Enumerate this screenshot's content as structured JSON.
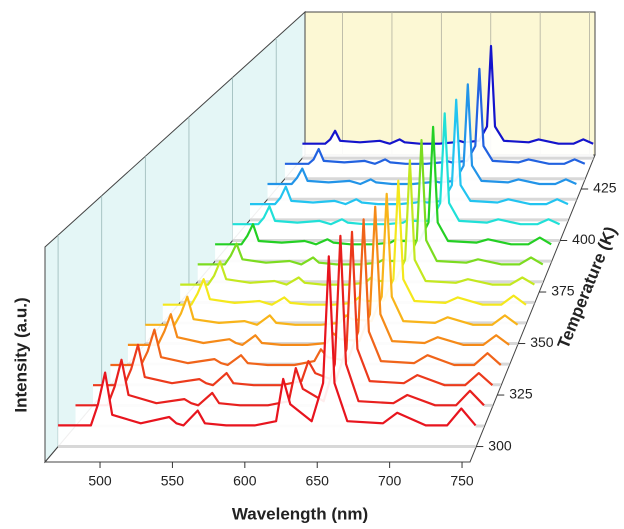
{
  "chart_data": {
    "type": "waterfall3d",
    "x_label": "Wavelength (nm)",
    "y_label": "Temperature (K)",
    "z_label": "Intensity (a.u.)",
    "xlim": [
      462,
      755.5
    ],
    "xticks": [
      500,
      550,
      600,
      650,
      700,
      750
    ],
    "ylim": [
      292.5,
      441.5
    ],
    "yticks": [
      300,
      325,
      350,
      375,
      400,
      425
    ],
    "zlim": [
      0,
      1
    ],
    "x": [
      462,
      485,
      490,
      495,
      500,
      520,
      540,
      545,
      550,
      560,
      565,
      580,
      600,
      615,
      620,
      625,
      640,
      648,
      652,
      656,
      665,
      690,
      700,
      720,
      735,
      745,
      755
    ],
    "series": [
      {
        "temperature": 300,
        "color": "#e8141e",
        "values": [
          0.1,
          0.1,
          0.2,
          0.35,
          0.15,
          0.11,
          0.14,
          0.11,
          0.1,
          0.17,
          0.11,
          0.1,
          0.1,
          0.12,
          0.32,
          0.2,
          0.12,
          0.3,
          0.9,
          0.3,
          0.12,
          0.11,
          0.16,
          0.1,
          0.1,
          0.18,
          0.1
        ]
      },
      {
        "temperature": 310,
        "color": "#e8201e",
        "values": [
          0.1,
          0.1,
          0.19,
          0.32,
          0.15,
          0.11,
          0.13,
          0.11,
          0.1,
          0.16,
          0.11,
          0.1,
          0.1,
          0.12,
          0.28,
          0.18,
          0.12,
          0.3,
          0.92,
          0.3,
          0.12,
          0.11,
          0.15,
          0.1,
          0.1,
          0.17,
          0.1
        ]
      },
      {
        "temperature": 320,
        "color": "#ec3a1c",
        "values": [
          0.1,
          0.1,
          0.18,
          0.3,
          0.14,
          0.11,
          0.13,
          0.11,
          0.1,
          0.16,
          0.11,
          0.1,
          0.1,
          0.12,
          0.22,
          0.16,
          0.12,
          0.28,
          0.86,
          0.28,
          0.12,
          0.11,
          0.15,
          0.1,
          0.1,
          0.16,
          0.1
        ]
      },
      {
        "temperature": 330,
        "color": "#f0641a",
        "values": [
          0.1,
          0.1,
          0.17,
          0.28,
          0.14,
          0.11,
          0.13,
          0.11,
          0.1,
          0.15,
          0.11,
          0.1,
          0.1,
          0.12,
          0.18,
          0.14,
          0.12,
          0.27,
          0.84,
          0.27,
          0.12,
          0.11,
          0.15,
          0.1,
          0.1,
          0.16,
          0.1
        ]
      },
      {
        "temperature": 340,
        "color": "#f58a18",
        "values": [
          0.1,
          0.1,
          0.17,
          0.26,
          0.14,
          0.11,
          0.13,
          0.11,
          0.1,
          0.15,
          0.11,
          0.1,
          0.1,
          0.11,
          0.16,
          0.13,
          0.12,
          0.26,
          0.82,
          0.26,
          0.12,
          0.11,
          0.14,
          0.1,
          0.1,
          0.15,
          0.1
        ]
      },
      {
        "temperature": 350,
        "color": "#f8b41a",
        "values": [
          0.1,
          0.1,
          0.16,
          0.25,
          0.13,
          0.11,
          0.12,
          0.11,
          0.1,
          0.15,
          0.11,
          0.1,
          0.1,
          0.11,
          0.15,
          0.13,
          0.12,
          0.25,
          0.8,
          0.25,
          0.12,
          0.11,
          0.14,
          0.1,
          0.1,
          0.15,
          0.1
        ]
      },
      {
        "temperature": 360,
        "color": "#f4e81c",
        "values": [
          0.1,
          0.1,
          0.16,
          0.24,
          0.13,
          0.11,
          0.12,
          0.11,
          0.1,
          0.14,
          0.11,
          0.1,
          0.1,
          0.11,
          0.14,
          0.12,
          0.12,
          0.24,
          0.78,
          0.24,
          0.12,
          0.11,
          0.14,
          0.1,
          0.1,
          0.15,
          0.1
        ]
      },
      {
        "temperature": 370,
        "color": "#c4e820",
        "values": [
          0.1,
          0.1,
          0.15,
          0.23,
          0.13,
          0.11,
          0.12,
          0.11,
          0.1,
          0.14,
          0.11,
          0.1,
          0.1,
          0.11,
          0.14,
          0.12,
          0.12,
          0.24,
          0.8,
          0.24,
          0.12,
          0.11,
          0.13,
          0.1,
          0.1,
          0.14,
          0.1
        ]
      },
      {
        "temperature": 380,
        "color": "#7cdc20",
        "values": [
          0.1,
          0.1,
          0.15,
          0.22,
          0.13,
          0.11,
          0.12,
          0.11,
          0.1,
          0.14,
          0.11,
          0.1,
          0.1,
          0.11,
          0.13,
          0.12,
          0.12,
          0.24,
          0.82,
          0.24,
          0.12,
          0.11,
          0.13,
          0.1,
          0.1,
          0.14,
          0.1
        ]
      },
      {
        "temperature": 390,
        "color": "#24d024",
        "values": [
          0.1,
          0.1,
          0.15,
          0.22,
          0.12,
          0.11,
          0.12,
          0.11,
          0.1,
          0.13,
          0.11,
          0.1,
          0.1,
          0.11,
          0.13,
          0.12,
          0.12,
          0.23,
          0.8,
          0.23,
          0.12,
          0.11,
          0.13,
          0.1,
          0.1,
          0.14,
          0.1
        ]
      },
      {
        "temperature": 400,
        "color": "#20e0d8",
        "values": [
          0.1,
          0.1,
          0.14,
          0.21,
          0.12,
          0.11,
          0.12,
          0.11,
          0.1,
          0.13,
          0.11,
          0.1,
          0.1,
          0.11,
          0.13,
          0.12,
          0.12,
          0.23,
          0.78,
          0.23,
          0.12,
          0.11,
          0.13,
          0.1,
          0.1,
          0.13,
          0.1
        ]
      },
      {
        "temperature": 410,
        "color": "#22c4f0",
        "values": [
          0.1,
          0.1,
          0.14,
          0.21,
          0.12,
          0.11,
          0.12,
          0.11,
          0.1,
          0.13,
          0.11,
          0.1,
          0.1,
          0.11,
          0.12,
          0.11,
          0.12,
          0.22,
          0.76,
          0.22,
          0.12,
          0.11,
          0.13,
          0.1,
          0.1,
          0.13,
          0.1
        ]
      },
      {
        "temperature": 420,
        "color": "#2294e8",
        "values": [
          0.1,
          0.1,
          0.14,
          0.2,
          0.12,
          0.11,
          0.12,
          0.11,
          0.1,
          0.13,
          0.11,
          0.1,
          0.1,
          0.11,
          0.12,
          0.11,
          0.12,
          0.22,
          0.75,
          0.22,
          0.12,
          0.11,
          0.13,
          0.1,
          0.1,
          0.13,
          0.1
        ]
      },
      {
        "temperature": 430,
        "color": "#2262e0",
        "values": [
          0.1,
          0.1,
          0.13,
          0.2,
          0.12,
          0.11,
          0.12,
          0.11,
          0.1,
          0.13,
          0.11,
          0.1,
          0.1,
          0.11,
          0.12,
          0.11,
          0.12,
          0.22,
          0.74,
          0.22,
          0.12,
          0.11,
          0.13,
          0.1,
          0.1,
          0.13,
          0.1
        ]
      },
      {
        "temperature": 440,
        "color": "#1414cc",
        "values": [
          0.1,
          0.1,
          0.13,
          0.19,
          0.12,
          0.11,
          0.12,
          0.11,
          0.1,
          0.13,
          0.11,
          0.1,
          0.1,
          0.11,
          0.12,
          0.11,
          0.12,
          0.22,
          0.78,
          0.22,
          0.12,
          0.11,
          0.13,
          0.1,
          0.1,
          0.13,
          0.1
        ]
      }
    ],
    "wall_colors": {
      "left": "#e4f6f6",
      "back": "#fcf8d4",
      "floor": "#ffffff"
    }
  }
}
